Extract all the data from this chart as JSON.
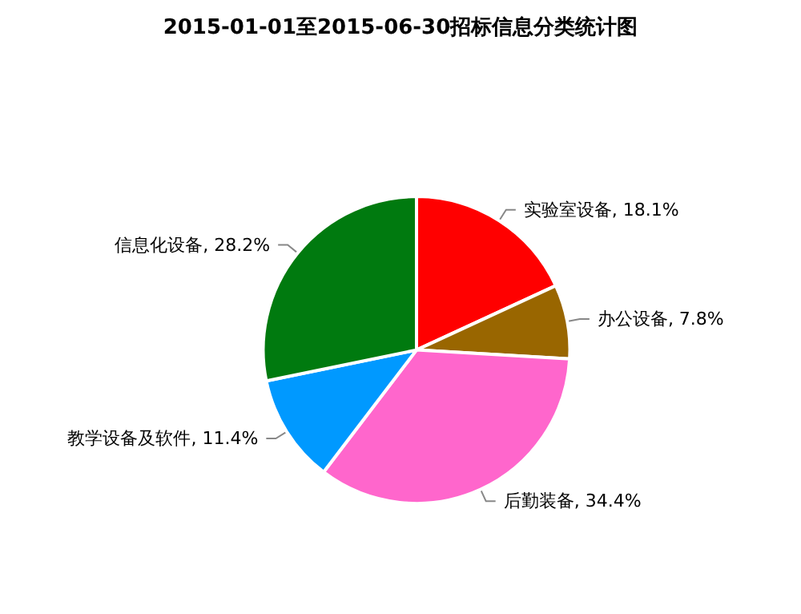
{
  "chart_data": {
    "type": "pie",
    "title": "2015-01-01至2015-06-30招标信息分类统计图",
    "categories": [
      "实验室设备",
      "办公设备",
      "后勤装备",
      "教学设备及软件",
      "信息化设备"
    ],
    "values": [
      18.1,
      7.8,
      34.4,
      11.4,
      28.2
    ],
    "value_labels": [
      "18.1%",
      "7.8%",
      "34.4%",
      "11.4%",
      "28.2%"
    ],
    "colors": [
      "#ff0000",
      "#996600",
      "#ff66cc",
      "#0099ff",
      "#007a0f"
    ],
    "legend": false
  }
}
